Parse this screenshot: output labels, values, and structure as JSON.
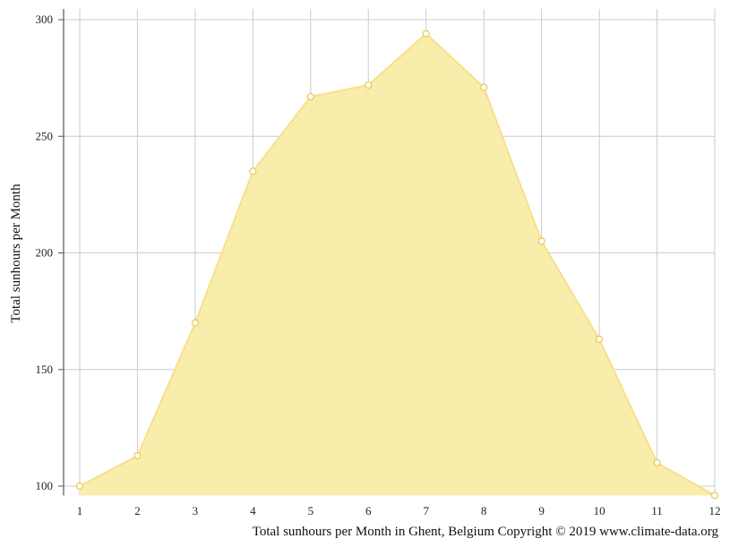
{
  "chart_data": {
    "type": "area",
    "x": [
      1,
      2,
      3,
      4,
      5,
      6,
      7,
      8,
      9,
      10,
      11,
      12
    ],
    "series": [
      {
        "values": [
          100,
          113,
          170,
          235,
          267,
          272,
          294,
          271,
          205,
          163,
          110,
          96
        ]
      }
    ],
    "ylabel": "Total sunhours per Month",
    "caption": "Total sunhours per Month in Ghent, Belgium Copyright © 2019 www.climate-data.org",
    "xlim": [
      1,
      12
    ],
    "ylim": [
      96,
      303
    ],
    "y_ticks": [
      100,
      150,
      200,
      250,
      300
    ],
    "x_ticks": [
      1,
      2,
      3,
      4,
      5,
      6,
      7,
      8,
      9,
      10,
      11,
      12
    ],
    "grid": true,
    "colors": {
      "fill": "#f9eca8",
      "line": "#f6e08c",
      "marker_stroke": "#e9c84a",
      "grid": "#cccccc",
      "axis": "#555555"
    }
  }
}
